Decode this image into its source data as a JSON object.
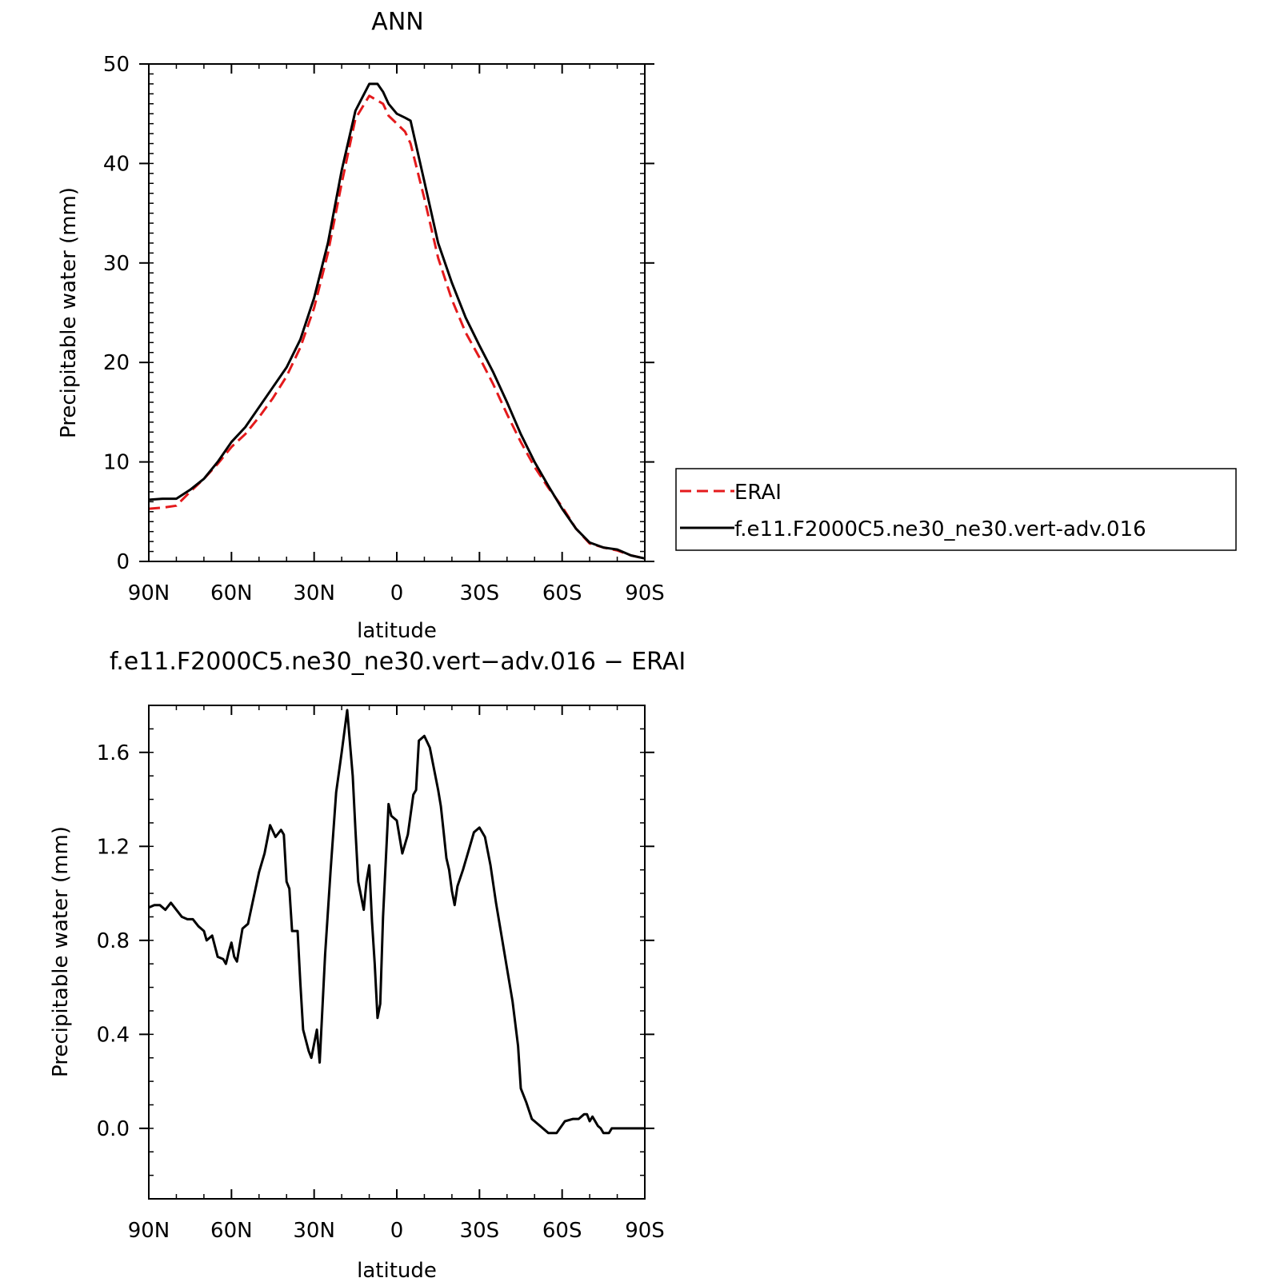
{
  "chart_data": [
    {
      "type": "line",
      "title": "ANN",
      "xlabel": "latitude",
      "ylabel": "Precipitable water (mm)",
      "xlim": [
        90,
        -90
      ],
      "ylim": [
        0,
        50
      ],
      "x_ticks": [
        {
          "value": 90,
          "label": "90N"
        },
        {
          "value": 60,
          "label": "60N"
        },
        {
          "value": 30,
          "label": "30N"
        },
        {
          "value": 0,
          "label": "0"
        },
        {
          "value": -30,
          "label": "30S"
        },
        {
          "value": -60,
          "label": "60S"
        },
        {
          "value": -90,
          "label": "90S"
        }
      ],
      "y_ticks": [
        {
          "value": 0,
          "label": "0"
        },
        {
          "value": 10,
          "label": "10"
        },
        {
          "value": 20,
          "label": "20"
        },
        {
          "value": 30,
          "label": "30"
        },
        {
          "value": 40,
          "label": "40"
        },
        {
          "value": 50,
          "label": "50"
        }
      ],
      "grid": false,
      "legend": {
        "placement": "right"
      },
      "series": [
        {
          "name": "ERAI",
          "color": "#e41a1c",
          "dash": "dashed",
          "x": [
            90,
            85,
            80,
            75,
            70,
            65,
            60,
            55,
            50,
            45,
            40,
            35,
            30,
            25,
            20,
            15,
            10,
            5,
            3,
            0,
            -3,
            -5,
            -10,
            -15,
            -20,
            -25,
            -30,
            -35,
            -40,
            -45,
            -50,
            -55,
            -60,
            -65,
            -70,
            -75,
            -80,
            -85,
            -90
          ],
          "y": [
            5.3,
            5.4,
            5.6,
            7.0,
            8.3,
            9.8,
            11.5,
            12.8,
            14.5,
            16.4,
            18.6,
            21.5,
            25.5,
            31.0,
            38.0,
            44.5,
            46.8,
            46.0,
            44.8,
            44.0,
            43.2,
            42.0,
            36.5,
            30.5,
            26.3,
            23.0,
            20.5,
            17.8,
            14.8,
            12.0,
            9.5,
            7.4,
            5.5,
            3.3,
            1.8,
            1.4,
            1.1,
            0.6,
            0.3
          ]
        },
        {
          "name": "f.e11.F2000C5.ne30_ne30.vert-adv.016",
          "color": "#000000",
          "dash": "solid",
          "x": [
            90,
            85,
            80,
            75,
            70,
            65,
            60,
            55,
            50,
            45,
            40,
            35,
            30,
            25,
            20,
            15,
            10,
            7,
            5,
            3,
            0,
            -3,
            -5,
            -10,
            -15,
            -20,
            -25,
            -30,
            -35,
            -40,
            -45,
            -50,
            -55,
            -60,
            -65,
            -70,
            -75,
            -80,
            -85,
            -90
          ],
          "y": [
            6.2,
            6.3,
            6.3,
            7.2,
            8.3,
            10.0,
            12.0,
            13.5,
            15.5,
            17.5,
            19.5,
            22.3,
            26.5,
            32.0,
            39.3,
            45.3,
            48.0,
            48.0,
            47.2,
            46.0,
            45.0,
            44.6,
            44.3,
            38.2,
            32.0,
            28.0,
            24.5,
            21.7,
            19.0,
            16.0,
            12.8,
            10.0,
            7.6,
            5.3,
            3.3,
            1.9,
            1.4,
            1.2,
            0.6,
            0.3
          ]
        }
      ]
    },
    {
      "type": "line",
      "title": "f.e11.F2000C5.ne30_ne30.vert−adv.016 − ERAI",
      "xlabel": "latitude",
      "ylabel": "Precipitable water (mm)",
      "xlim": [
        90,
        -90
      ],
      "ylim": [
        -0.3,
        1.8
      ],
      "x_ticks": [
        {
          "value": 90,
          "label": "90N"
        },
        {
          "value": 60,
          "label": "60N"
        },
        {
          "value": 30,
          "label": "30N"
        },
        {
          "value": 0,
          "label": "0"
        },
        {
          "value": -30,
          "label": "30S"
        },
        {
          "value": -60,
          "label": "60S"
        },
        {
          "value": -90,
          "label": "90S"
        }
      ],
      "y_ticks": [
        {
          "value": 0.0,
          "label": "0.0"
        },
        {
          "value": 0.4,
          "label": "0.4"
        },
        {
          "value": 0.8,
          "label": "0.8"
        },
        {
          "value": 1.2,
          "label": "1.2"
        },
        {
          "value": 1.6,
          "label": "1.6"
        }
      ],
      "grid": false,
      "series": [
        {
          "color": "#000000",
          "dash": "solid",
          "x": [
            90,
            88,
            86,
            84,
            82,
            80,
            78,
            76,
            74,
            72,
            70,
            69,
            67,
            65,
            63,
            62,
            61,
            60,
            59,
            58,
            56,
            54,
            52,
            50,
            48,
            46,
            44,
            42,
            41,
            40,
            39,
            38,
            36,
            35,
            34,
            32,
            31,
            29,
            28,
            26,
            24,
            22,
            20,
            18,
            16,
            15,
            14,
            12,
            11,
            10,
            9,
            8,
            7,
            6,
            5,
            3,
            2,
            0,
            -2,
            -4,
            -6,
            -7,
            -8,
            -10,
            -12,
            -14,
            -15,
            -16,
            -17,
            -18,
            -19,
            -20,
            -21,
            -22,
            -24,
            -26,
            -28,
            -30,
            -32,
            -34,
            -36,
            -38,
            -40,
            -42,
            -44,
            -45,
            -47,
            -49,
            -52,
            -55,
            -58,
            -61,
            -64,
            -66,
            -68,
            -69,
            -70,
            -71,
            -73,
            -74,
            -75,
            -76,
            -77,
            -78,
            -79,
            -80,
            -81,
            -82,
            -84,
            -86,
            -87,
            -88,
            -90
          ],
          "y": [
            0.94,
            0.95,
            0.95,
            0.93,
            0.96,
            0.93,
            0.9,
            0.89,
            0.89,
            0.86,
            0.84,
            0.8,
            0.82,
            0.73,
            0.72,
            0.7,
            0.75,
            0.79,
            0.73,
            0.71,
            0.85,
            0.87,
            0.98,
            1.09,
            1.17,
            1.29,
            1.24,
            1.27,
            1.25,
            1.05,
            1.02,
            0.84,
            0.84,
            0.62,
            0.42,
            0.33,
            0.3,
            0.42,
            0.28,
            0.74,
            1.1,
            1.43,
            1.6,
            1.78,
            1.5,
            1.27,
            1.05,
            0.93,
            1.05,
            1.12,
            0.88,
            0.7,
            0.47,
            0.53,
            0.9,
            1.38,
            1.33,
            1.31,
            1.17,
            1.25,
            1.42,
            1.44,
            1.65,
            1.67,
            1.62,
            1.5,
            1.44,
            1.37,
            1.26,
            1.15,
            1.1,
            1.01,
            0.95,
            1.03,
            1.1,
            1.18,
            1.26,
            1.28,
            1.24,
            1.12,
            0.96,
            0.82,
            0.68,
            0.54,
            0.35,
            0.17,
            0.11,
            0.04,
            0.01,
            -0.02,
            -0.02,
            0.03,
            0.04,
            0.04,
            0.06,
            0.06,
            0.03,
            0.05,
            0.01,
            0.0,
            -0.02,
            -0.02,
            -0.02,
            0.0,
            0.0,
            0.0,
            0.0,
            0.0,
            0.0,
            0.0,
            0.0,
            0.0,
            0.0
          ]
        }
      ]
    }
  ]
}
